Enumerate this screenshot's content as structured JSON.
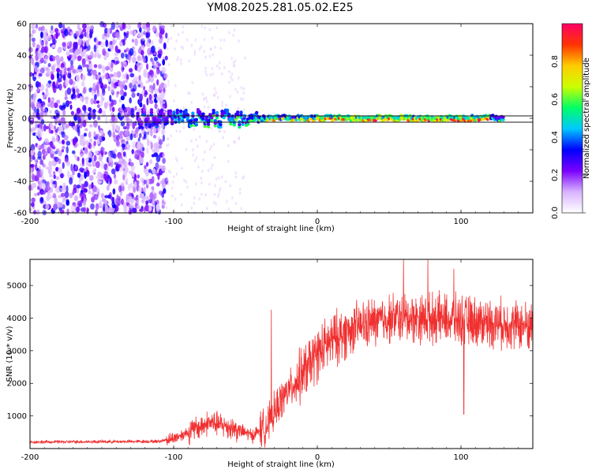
{
  "figure": {
    "title": "YM08.2025.281.05.02.E25"
  },
  "chart_data": [
    {
      "type": "heatmap",
      "name": "spectrogram",
      "xlabel": "Height of straight line (km)",
      "ylabel": "Frequency (Hz)",
      "xlim": [
        -200,
        150
      ],
      "ylim": [
        -60,
        60
      ],
      "xticks": [
        -200,
        -100,
        0,
        100
      ],
      "yticks": [
        -60,
        -40,
        -20,
        0,
        20,
        40,
        60
      ],
      "noise_region": [
        -200,
        -105
      ],
      "signal_center_hz": 0,
      "colorbar": {
        "label": "Normalized spectral amplitude",
        "range": [
          0,
          1
        ],
        "ticks": [
          "0.0",
          "0.2",
          "0.4",
          "0.6",
          "0.8"
        ],
        "colormap": [
          "#ffffff",
          "#d8b3ff",
          "#7a00ff",
          "#0000ff",
          "#00c8ff",
          "#00ff66",
          "#ccff00",
          "#ffcc00",
          "#ff3300",
          "#ff0066"
        ]
      }
    },
    {
      "type": "line",
      "name": "snr",
      "xlabel": "Height of straight line (km)",
      "ylabel": "SNR (10 * v/v)",
      "xlim": [
        -200,
        150
      ],
      "ylim": [
        0,
        5800
      ],
      "xticks": [
        -200,
        -100,
        0,
        100
      ],
      "yticks": [
        1000,
        2000,
        3000,
        4000,
        5000
      ],
      "color": "#f03030",
      "trend": [
        {
          "x": -200,
          "y": 200
        },
        {
          "x": -110,
          "y": 220
        },
        {
          "x": -100,
          "y": 320
        },
        {
          "x": -90,
          "y": 500
        },
        {
          "x": -75,
          "y": 800
        },
        {
          "x": -60,
          "y": 650
        },
        {
          "x": -45,
          "y": 400
        },
        {
          "x": -35,
          "y": 700
        },
        {
          "x": -25,
          "y": 1500
        },
        {
          "x": -10,
          "y": 2300
        },
        {
          "x": 0,
          "y": 2900
        },
        {
          "x": 10,
          "y": 3300
        },
        {
          "x": 25,
          "y": 3700
        },
        {
          "x": 50,
          "y": 4000
        },
        {
          "x": 80,
          "y": 4000
        },
        {
          "x": 110,
          "y": 3900
        },
        {
          "x": 150,
          "y": 3750
        }
      ],
      "spikes": [
        {
          "x": -32,
          "y": 4250
        },
        {
          "x": 60,
          "y": 5800
        },
        {
          "x": 77,
          "y": 5800
        },
        {
          "x": 95,
          "y": 5500
        },
        {
          "x": 102,
          "y": 1050
        }
      ]
    }
  ]
}
